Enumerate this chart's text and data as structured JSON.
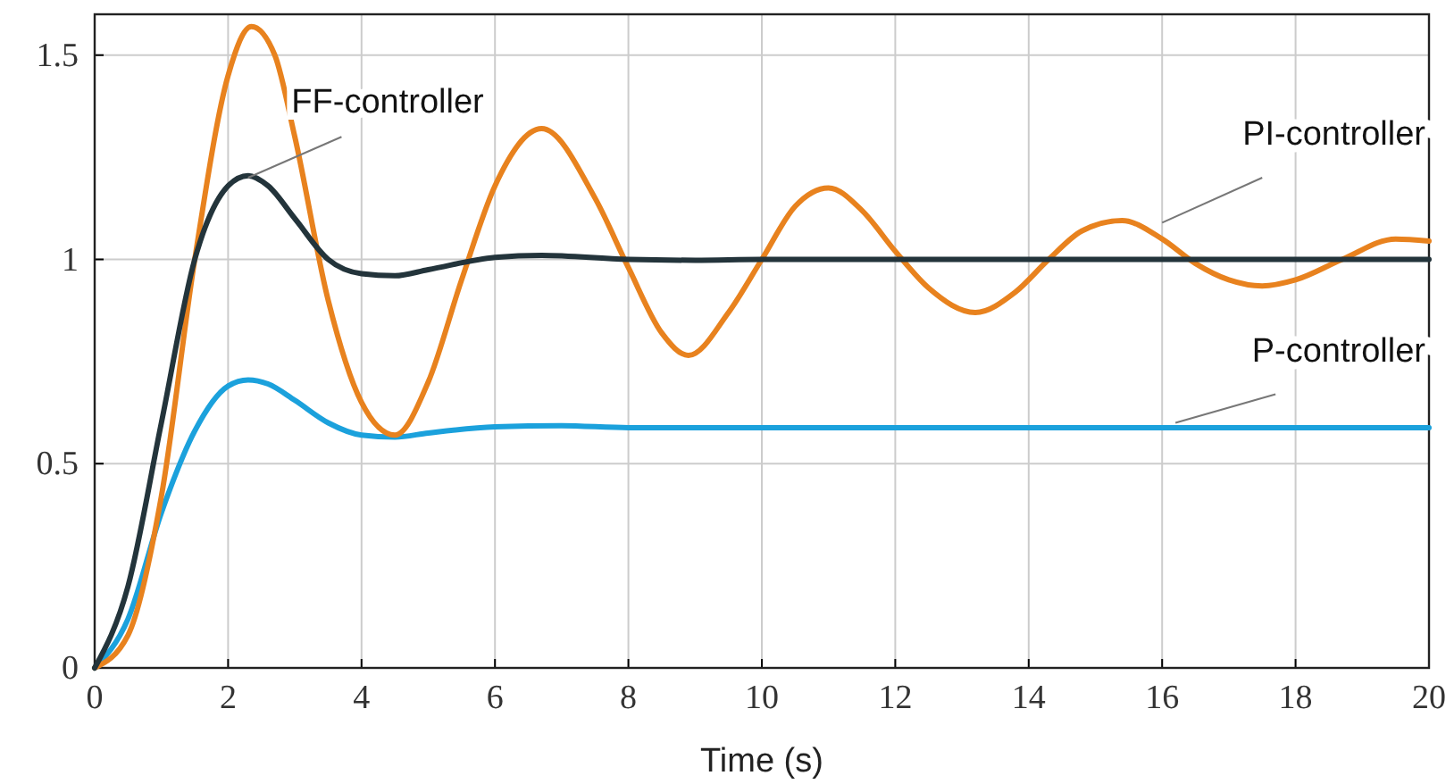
{
  "chart_data": {
    "type": "line",
    "xlabel": "Time (s)",
    "xlim": [
      0,
      20
    ],
    "xticks": [
      0,
      2,
      4,
      6,
      8,
      10,
      12,
      14,
      16,
      18,
      20
    ],
    "ylim": [
      0,
      1.6
    ],
    "yticks": [
      0,
      0.5,
      1,
      1.5
    ],
    "grid": true,
    "marker": "none",
    "line_style": "solid",
    "series": [
      {
        "name": "P-controller",
        "color": "#1ba1dc",
        "x": [
          0,
          0.5,
          1,
          1.5,
          2,
          2.3,
          2.6,
          3,
          3.5,
          4,
          4.5,
          5,
          6,
          7,
          8,
          10,
          12,
          14,
          16,
          18,
          20
        ],
        "values": [
          0,
          0.12,
          0.38,
          0.58,
          0.69,
          0.705,
          0.695,
          0.655,
          0.6,
          0.57,
          0.565,
          0.575,
          0.59,
          0.593,
          0.588,
          0.588,
          0.588,
          0.588,
          0.588,
          0.588,
          0.588
        ]
      },
      {
        "name": "PI-controller",
        "color": "#e8821e",
        "x": [
          0,
          0.5,
          1,
          1.5,
          2,
          2.35,
          2.7,
          3,
          3.5,
          4,
          4.5,
          5,
          5.5,
          6,
          6.7,
          7.5,
          8,
          8.5,
          8.9,
          9.5,
          10,
          10.5,
          11,
          11.5,
          12,
          12.5,
          13.2,
          13.8,
          14.3,
          14.8,
          15.4,
          16,
          16.5,
          17,
          17.5,
          18,
          18.7,
          19.5,
          20
        ],
        "values": [
          0,
          0.08,
          0.42,
          1.0,
          1.45,
          1.57,
          1.5,
          1.3,
          0.9,
          0.65,
          0.57,
          0.7,
          0.95,
          1.18,
          1.32,
          1.15,
          0.98,
          0.82,
          0.765,
          0.87,
          1.0,
          1.13,
          1.175,
          1.12,
          1.02,
          0.93,
          0.87,
          0.92,
          1.0,
          1.07,
          1.095,
          1.05,
          0.99,
          0.95,
          0.935,
          0.95,
          1.0,
          1.05,
          1.045
        ]
      },
      {
        "name": "FF-controller",
        "color": "#23343b",
        "x": [
          0,
          0.5,
          1,
          1.5,
          2,
          2.3,
          2.6,
          3,
          3.5,
          4,
          4.5,
          5,
          6,
          6.7,
          8,
          9,
          10,
          12,
          14,
          16,
          18,
          20
        ],
        "values": [
          0,
          0.2,
          0.6,
          1.0,
          1.18,
          1.205,
          1.18,
          1.1,
          1.0,
          0.965,
          0.96,
          0.975,
          1.005,
          1.01,
          1.0,
          0.998,
          1.0,
          1.0,
          1.0,
          1.0,
          1.0,
          1.0
        ]
      }
    ]
  }
}
